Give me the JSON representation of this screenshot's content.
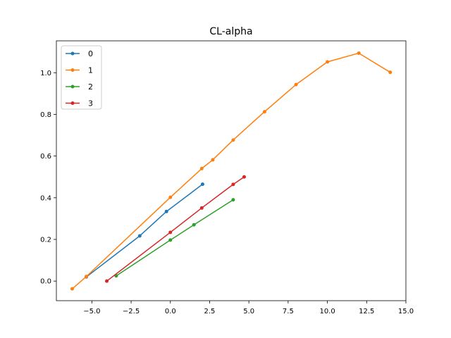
{
  "chart_data": {
    "type": "line",
    "title": "CL-alpha",
    "xlabel": "",
    "ylabel": "",
    "xlim": [
      -7.26,
      15.0
    ],
    "ylim": [
      -0.094,
      1.153
    ],
    "xticks": [
      -5.0,
      -2.5,
      0.0,
      2.5,
      5.0,
      7.5,
      10.0,
      12.5,
      15.0
    ],
    "xtick_labels": [
      "−5.0",
      "−2.5",
      "0.0",
      "2.5",
      "5.0",
      "7.5",
      "10.0",
      "12.5",
      "15.0"
    ],
    "yticks": [
      0.0,
      0.2,
      0.4,
      0.6,
      0.8,
      1.0
    ],
    "ytick_labels": [
      "0.0",
      "0.2",
      "0.4",
      "0.6",
      "0.8",
      "1.0"
    ],
    "grid": false,
    "legend": "top-left",
    "series": [
      {
        "name": "0",
        "color": "#1f77b4",
        "x": [
          -5.35,
          -1.95,
          -0.25,
          2.05
        ],
        "y": [
          0.02,
          0.217,
          0.334,
          0.465
        ]
      },
      {
        "name": "1",
        "color": "#ff7f0e",
        "x": [
          -6.25,
          -5.35,
          0.0,
          2.0,
          2.7,
          4.0,
          6.0,
          8.0,
          10.0,
          12.0,
          14.0
        ],
        "y": [
          -0.037,
          0.022,
          0.402,
          0.54,
          0.582,
          0.677,
          0.813,
          0.943,
          1.052,
          1.094,
          1.002
        ]
      },
      {
        "name": "2",
        "color": "#2ca02c",
        "x": [
          -3.45,
          0.0,
          1.5,
          4.0
        ],
        "y": [
          0.025,
          0.197,
          0.27,
          0.39
        ]
      },
      {
        "name": "3",
        "color": "#d62728",
        "x": [
          -4.05,
          0.0,
          2.0,
          4.0,
          4.7
        ],
        "y": [
          0.0,
          0.234,
          0.351,
          0.464,
          0.5
        ]
      }
    ]
  }
}
